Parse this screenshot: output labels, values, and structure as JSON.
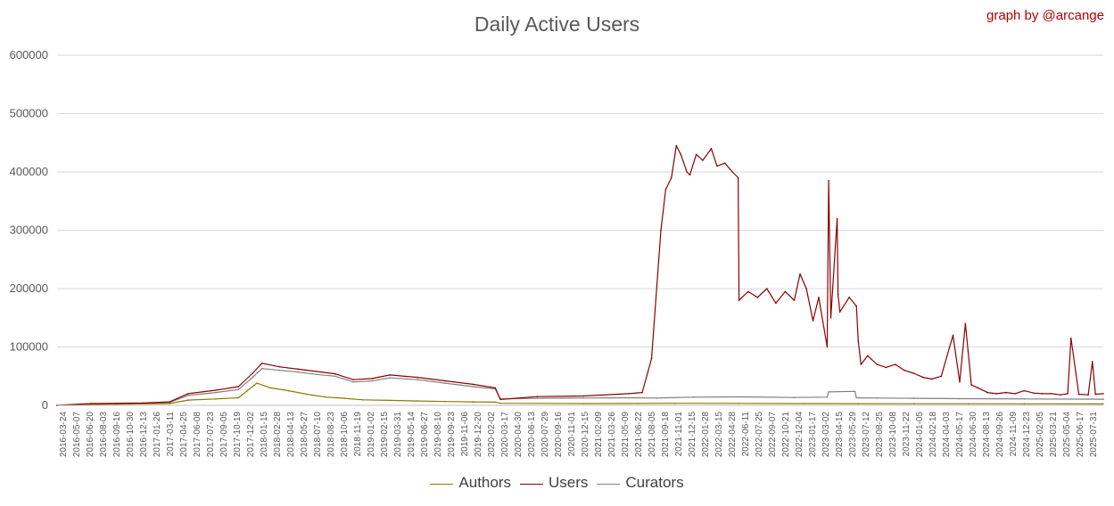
{
  "header": {
    "title": "Daily Active Users",
    "credit": "graph by @arcange"
  },
  "legend": [
    {
      "name": "Authors",
      "color": "#8b7a00"
    },
    {
      "name": "Users",
      "color": "#8b0000"
    },
    {
      "name": "Curators",
      "color": "#7f7f7f"
    }
  ],
  "chart_data": {
    "type": "line",
    "title": "Daily Active Users",
    "xlabel": "",
    "ylabel": "",
    "ylim": [
      0,
      600000
    ],
    "yticks": [
      0,
      100000,
      200000,
      300000,
      400000,
      500000,
      600000
    ],
    "xlim": [
      "2016-03-24",
      "2025-09-20"
    ],
    "grid": "horizontal",
    "legend_position": "bottom",
    "x_tick_labels": [
      "2016-03-24",
      "2016-05-07",
      "2016-06-20",
      "2016-08-03",
      "2016-09-16",
      "2016-10-30",
      "2016-12-13",
      "2017-01-26",
      "2017-03-11",
      "2017-04-25",
      "2017-06-08",
      "2017-07-23",
      "2017-09-05",
      "2017-10-19",
      "2017-12-02",
      "2018-01-15",
      "2018-02-28",
      "2018-04-13",
      "2018-05-27",
      "2018-07-10",
      "2018-08-23",
      "2018-10-06",
      "2018-11-19",
      "2019-01-02",
      "2019-02-15",
      "2019-03-31",
      "2019-05-14",
      "2019-06-27",
      "2019-08-10",
      "2019-09-23",
      "2019-11-06",
      "2019-12-20",
      "2020-02-02",
      "2020-03-17",
      "2020-04-30",
      "2020-06-13",
      "2020-07-29",
      "2020-09-16",
      "2020-11-01",
      "2020-12-15",
      "2021-02-09",
      "2021-03-26",
      "2021-05-09",
      "2021-06-22",
      "2021-08-05",
      "2021-09-18",
      "2021-11-01",
      "2021-12-15",
      "2022-01-28",
      "2022-03-15",
      "2022-04-28",
      "2022-06-11",
      "2022-07-25",
      "2022-09-07",
      "2022-10-21",
      "2022-12-04",
      "2023-01-17",
      "2023-03-02",
      "2023-04-15",
      "2023-05-29",
      "2023-07-12",
      "2023-08-25",
      "2023-10-08",
      "2023-11-22",
      "2024-01-05",
      "2024-02-18",
      "2024-04-03",
      "2024-05-17",
      "2024-06-30",
      "2024-08-13",
      "2024-09-26",
      "2024-11-09",
      "2024-12-23",
      "2025-02-05",
      "2025-03-21",
      "2025-05-04",
      "2025-06-17",
      "2025-07-31"
    ],
    "series": [
      {
        "name": "Authors",
        "color": "#8b7a00",
        "x": [
          "2016-03-24",
          "2016-07-15",
          "2017-04-01",
          "2017-06-01",
          "2017-09-01",
          "2017-11-15",
          "2018-01-15",
          "2018-03-01",
          "2018-05-01",
          "2018-07-01",
          "2018-09-01",
          "2018-11-01",
          "2019-01-01",
          "2019-04-01",
          "2019-07-01",
          "2019-10-01",
          "2020-01-01",
          "2020-03-15",
          "2020-04-01",
          "2021-01-01",
          "2021-07-01",
          "2021-11-01",
          "2022-06-01",
          "2023-01-01",
          "2023-07-01",
          "2024-01-01",
          "2024-07-01",
          "2025-01-01",
          "2025-09-20"
        ],
        "y": [
          0,
          1500,
          3000,
          9000,
          11000,
          13000,
          38000,
          30000,
          25000,
          19000,
          14000,
          12000,
          9500,
          8500,
          7500,
          6500,
          6000,
          5500,
          3500,
          3000,
          3200,
          3500,
          3300,
          3000,
          2900,
          2800,
          2700,
          2600,
          2500
        ]
      },
      {
        "name": "Users",
        "color": "#8b0000",
        "x": [
          "2016-03-24",
          "2016-07-15",
          "2017-01-01",
          "2017-04-01",
          "2017-06-01",
          "2017-09-01",
          "2017-11-15",
          "2018-01-01",
          "2018-02-01",
          "2018-04-01",
          "2018-06-01",
          "2018-08-01",
          "2018-10-01",
          "2018-12-01",
          "2019-02-01",
          "2019-04-01",
          "2019-07-01",
          "2019-10-01",
          "2020-01-01",
          "2020-03-15",
          "2020-04-01",
          "2020-08-01",
          "2021-01-01",
          "2021-06-01",
          "2021-07-15",
          "2021-08-15",
          "2021-09-15",
          "2021-10-01",
          "2021-10-20",
          "2021-11-05",
          "2021-11-20",
          "2021-12-10",
          "2021-12-20",
          "2022-01-10",
          "2022-02-01",
          "2022-03-01",
          "2022-03-20",
          "2022-04-15",
          "2022-05-10",
          "2022-05-29",
          "2022-06-01",
          "2022-07-01",
          "2022-08-01",
          "2022-09-01",
          "2022-10-01",
          "2022-11-01",
          "2022-12-01",
          "2022-12-20",
          "2023-01-10",
          "2023-02-01",
          "2023-02-20",
          "2023-03-20",
          "2023-03-25",
          "2023-04-01",
          "2023-04-22",
          "2023-04-25",
          "2023-05-01",
          "2023-06-01",
          "2023-06-25",
          "2023-07-01",
          "2023-07-10",
          "2023-08-01",
          "2023-09-01",
          "2023-10-01",
          "2023-11-01",
          "2023-12-01",
          "2024-01-01",
          "2024-02-01",
          "2024-03-01",
          "2024-04-01",
          "2024-05-10",
          "2024-06-01",
          "2024-06-20",
          "2024-07-10",
          "2024-08-01",
          "2024-09-01",
          "2024-10-01",
          "2024-11-01",
          "2024-12-01",
          "2025-01-01",
          "2025-02-01",
          "2025-03-01",
          "2025-04-01",
          "2025-05-01",
          "2025-05-25",
          "2025-06-05",
          "2025-07-01",
          "2025-08-01",
          "2025-08-15",
          "2025-08-25",
          "2025-09-20"
        ],
        "y": [
          0,
          3000,
          4000,
          6000,
          20000,
          26000,
          32000,
          55000,
          72000,
          66000,
          62000,
          58000,
          54000,
          44000,
          46000,
          52000,
          48000,
          42000,
          36000,
          30000,
          10000,
          15000,
          16000,
          20000,
          22000,
          80000,
          300000,
          370000,
          390000,
          445000,
          430000,
          400000,
          395000,
          430000,
          420000,
          440000,
          410000,
          415000,
          400000,
          390000,
          180000,
          195000,
          185000,
          200000,
          175000,
          195000,
          180000,
          225000,
          200000,
          145000,
          185000,
          100000,
          385000,
          150000,
          320000,
          190000,
          160000,
          185000,
          170000,
          110000,
          70000,
          85000,
          70000,
          65000,
          70000,
          60000,
          55000,
          48000,
          45000,
          50000,
          120000,
          40000,
          140000,
          35000,
          30000,
          22000,
          20000,
          22000,
          20000,
          25000,
          21000,
          20000,
          20000,
          18000,
          20000,
          115000,
          19000,
          18000,
          75000,
          19000,
          20000
        ]
      },
      {
        "name": "Curators",
        "color": "#7f7f7f",
        "x": [
          "2016-03-24",
          "2016-07-15",
          "2017-01-01",
          "2017-04-01",
          "2017-06-01",
          "2017-09-01",
          "2017-11-15",
          "2018-01-01",
          "2018-02-01",
          "2018-04-01",
          "2018-06-01",
          "2018-08-01",
          "2018-10-01",
          "2018-12-01",
          "2019-02-01",
          "2019-04-01",
          "2019-07-01",
          "2019-10-01",
          "2020-01-01",
          "2020-03-15",
          "2020-04-01",
          "2020-08-01",
          "2021-01-01",
          "2021-06-01",
          "2021-09-01",
          "2022-01-01",
          "2022-06-01",
          "2022-12-01",
          "2023-03-20",
          "2023-03-25",
          "2023-06-20",
          "2023-06-25",
          "2023-09-01",
          "2024-01-01",
          "2024-06-01",
          "2025-01-01",
          "2025-09-20"
        ],
        "y": [
          0,
          2500,
          3500,
          5000,
          17000,
          22000,
          27000,
          48000,
          63000,
          60000,
          57000,
          53000,
          50000,
          40000,
          42000,
          47000,
          44000,
          38000,
          32000,
          28000,
          11000,
          12000,
          12500,
          13000,
          12500,
          14000,
          14500,
          13500,
          14000,
          23000,
          24000,
          13000,
          12500,
          12000,
          11500,
          11000,
          10500
        ]
      }
    ]
  }
}
